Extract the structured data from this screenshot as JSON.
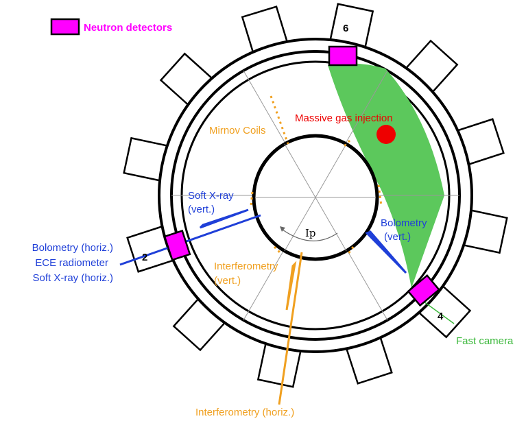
{
  "legend": {
    "label": "Neutron detectors"
  },
  "ports": [
    "6",
    "2",
    "4"
  ],
  "labels": {
    "gas_injection": "Massive gas injection",
    "mirnov": "Mirnov Coils",
    "sxr_vert": [
      "Soft X-ray",
      "(vert.)"
    ],
    "bolo_vert": [
      "Bolometry",
      "(vert.)"
    ],
    "ip": "Ip",
    "interf_vert": [
      "Interferometry",
      "(vert.)"
    ],
    "horiz": [
      "Bolometry (horiz.)",
      "ECE radiometer",
      "Soft X-ray (horiz.)"
    ],
    "camera": "Fast camera",
    "interf_horiz": "Interferometry (horiz.)"
  }
}
